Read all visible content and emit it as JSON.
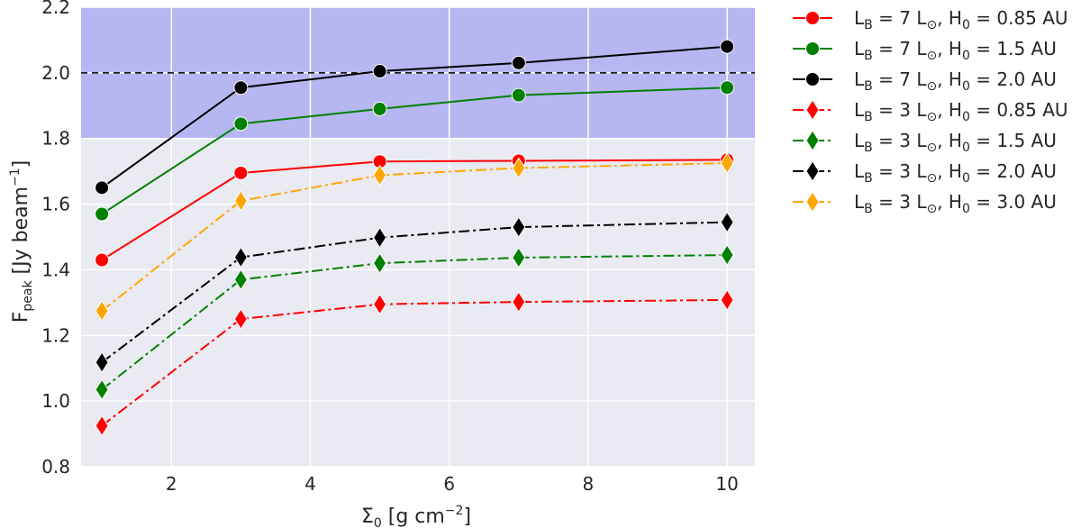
{
  "chart_data": {
    "type": "line",
    "title": "",
    "xlabel_main": "Σ",
    "xlabel_sub": "0",
    "xlabel_rest": " [g cm",
    "xlabel_sup": "−2",
    "xlabel_end": "]",
    "ylabel_main": "F",
    "ylabel_sub": "peak",
    "ylabel_rest": " [Jy beam",
    "ylabel_sup": "−1",
    "ylabel_end": "]",
    "xlim": [
      0.7,
      10.4
    ],
    "ylim": [
      0.8,
      2.2
    ],
    "xticks": [
      2,
      4,
      6,
      8,
      10
    ],
    "yticks": [
      0.8,
      1.0,
      1.2,
      1.4,
      1.6,
      1.8,
      2.0,
      2.2
    ],
    "xtick_labels": [
      "2",
      "4",
      "6",
      "8",
      "10"
    ],
    "ytick_labels": [
      "0.8",
      "1.0",
      "1.2",
      "1.4",
      "1.6",
      "1.8",
      "2.0",
      "2.2"
    ],
    "grid": true,
    "shaded_band": {
      "ymin": 1.8,
      "ymax": 2.2,
      "color": "#b6b6f2"
    },
    "reference_line": {
      "y": 2.0,
      "style": "dashed",
      "color": "#000000"
    },
    "legend_placement": "outside-right",
    "x": [
      1,
      3,
      5,
      7,
      10
    ],
    "series": [
      {
        "name": "L_B = 7 L⊙, H_0 = 0.85 AU",
        "l": "L",
        "lsub": "B",
        "mid1": " = 7 L",
        "sun": "⊙",
        "mid2": ", H",
        "hsub": "0",
        "tail": " = 0.85 AU",
        "color": "#ff0000",
        "marker": "circle",
        "linestyle": "solid",
        "values": [
          1.43,
          1.695,
          1.73,
          1.732,
          1.735
        ]
      },
      {
        "name": "L_B = 7 L⊙, H_0 = 1.5 AU",
        "l": "L",
        "lsub": "B",
        "mid1": " = 7 L",
        "sun": "⊙",
        "mid2": ", H",
        "hsub": "0",
        "tail": " = 1.5 AU",
        "color": "#008000",
        "marker": "circle",
        "linestyle": "solid",
        "values": [
          1.57,
          1.845,
          1.89,
          1.932,
          1.955
        ]
      },
      {
        "name": "L_B = 7 L⊙, H_0 = 2.0 AU",
        "l": "L",
        "lsub": "B",
        "mid1": " = 7 L",
        "sun": "⊙",
        "mid2": ", H",
        "hsub": "0",
        "tail": " = 2.0 AU",
        "color": "#000000",
        "marker": "circle",
        "linestyle": "solid",
        "values": [
          1.65,
          1.955,
          2.005,
          2.03,
          2.08
        ]
      },
      {
        "name": "L_B = 3 L⊙, H_0 = 0.85 AU",
        "l": "L",
        "lsub": "B",
        "mid1": " = 3 L",
        "sun": "⊙",
        "mid2": ", H",
        "hsub": "0",
        "tail": " = 0.85 AU",
        "color": "#ff0000",
        "marker": "diamond",
        "linestyle": "dashdot",
        "values": [
          0.925,
          1.25,
          1.295,
          1.302,
          1.308
        ]
      },
      {
        "name": "L_B = 3 L⊙, H_0 = 1.5 AU",
        "l": "L",
        "lsub": "B",
        "mid1": " = 3 L",
        "sun": "⊙",
        "mid2": ", H",
        "hsub": "0",
        "tail": " = 1.5 AU",
        "color": "#008000",
        "marker": "diamond",
        "linestyle": "dashdot",
        "values": [
          1.035,
          1.37,
          1.42,
          1.437,
          1.445
        ]
      },
      {
        "name": "L_B = 3 L⊙, H_0 = 2.0 AU",
        "l": "L",
        "lsub": "B",
        "mid1": " = 3 L",
        "sun": "⊙",
        "mid2": ", H",
        "hsub": "0",
        "tail": " = 2.0 AU",
        "color": "#000000",
        "marker": "diamond",
        "linestyle": "dashdot",
        "values": [
          1.118,
          1.438,
          1.498,
          1.53,
          1.545
        ]
      },
      {
        "name": "L_B = 3 L⊙, H_0 = 3.0 AU",
        "l": "L",
        "lsub": "B",
        "mid1": " = 3 L",
        "sun": "⊙",
        "mid2": ", H",
        "hsub": "0",
        "tail": " = 3.0 AU",
        "color": "#ffa500",
        "marker": "diamond",
        "linestyle": "dashdot",
        "values": [
          1.275,
          1.61,
          1.688,
          1.71,
          1.725
        ]
      }
    ]
  },
  "colors": {
    "plot_background": "#eaeaf2",
    "grid": "#ffffff",
    "text": "#262626"
  }
}
